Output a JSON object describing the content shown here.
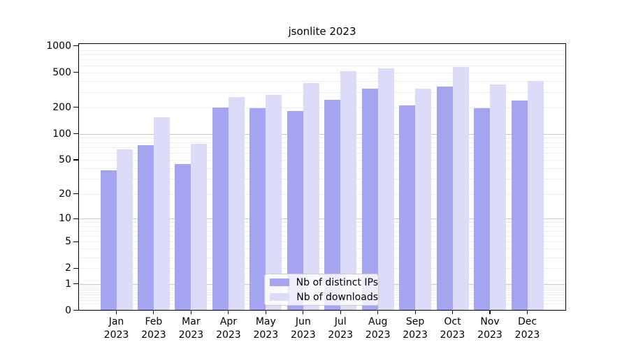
{
  "title": "jsonlite 2023",
  "chart_data": {
    "type": "bar",
    "title": "jsonlite 2023",
    "categories": [
      "Jan 2023",
      "Feb 2023",
      "Mar 2023",
      "Apr 2023",
      "May 2023",
      "Jun 2023",
      "Jul 2023",
      "Aug 2023",
      "Sep 2023",
      "Oct 2023",
      "Nov 2023",
      "Dec 2023"
    ],
    "series": [
      {
        "name": "Nb of distinct IPs",
        "color": "#a4a4f1",
        "values": [
          38,
          74,
          45,
          201,
          196,
          182,
          245,
          325,
          212,
          348,
          195,
          239
        ]
      },
      {
        "name": "Nb of downloads",
        "color": "#dcdcf8",
        "values": [
          66,
          153,
          76,
          264,
          278,
          380,
          520,
          560,
          326,
          575,
          362,
          398
        ]
      }
    ],
    "y_scale": "log1p",
    "y_ticks": [
      0,
      1,
      2,
      5,
      10,
      20,
      50,
      100,
      200,
      500,
      1000
    ],
    "ylim": [
      0,
      1080
    ],
    "xlabel": "",
    "ylabel": "",
    "grid": "on",
    "legend_position": "lower-center",
    "colors": {
      "grid_major": "#c8c8c8",
      "grid_minor": "#ededed",
      "axis": "#000000",
      "legend_border": "#cccccc"
    }
  }
}
